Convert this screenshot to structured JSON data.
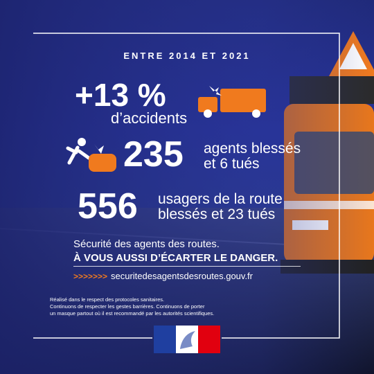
{
  "header": {
    "period": "ENTRE 2014 ET 2021"
  },
  "stats": [
    {
      "figure": "+13 %",
      "lines": [
        "d’accidents"
      ]
    },
    {
      "figure": "235",
      "lines": [
        "agents blessés",
        "et 6 tués"
      ]
    },
    {
      "figure": "556",
      "lines": [
        "usagers de la route",
        "blessés et 23 tués"
      ]
    }
  ],
  "message": {
    "line1": "Sécurité des agents des routes.",
    "line2": "À VOUS AUSSI D’ÉCARTER LE DANGER."
  },
  "link": {
    "arrows": ">>>>>>>",
    "url": "securitedesagentsdesroutes.gouv.fr"
  },
  "footnote": [
    "Réalisé dans le respect des protocoles sanitaires.",
    "Continuons de respecter les gestes barrières. Continuons de porter",
    "un masque partout où il est recommandé par les autorités scientifiques."
  ]
}
